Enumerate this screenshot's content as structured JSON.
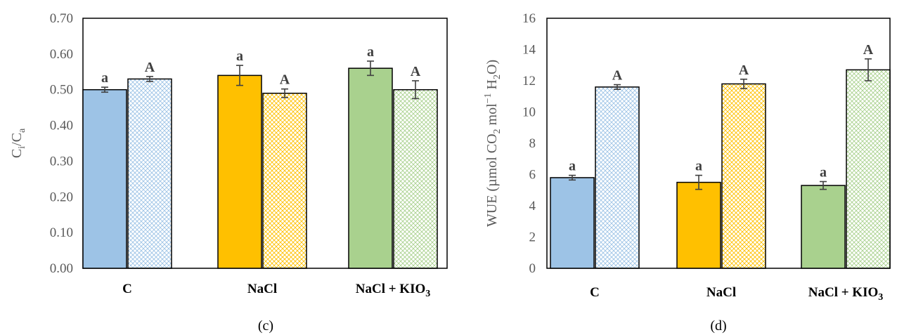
{
  "chart_data": [
    {
      "type": "bar",
      "panel_label": "(c)",
      "ylabel_main": "C",
      "ylabel_sub1": "i",
      "ylabel_mid": "/C",
      "ylabel_sub2": "a",
      "ylim": [
        0,
        0.7
      ],
      "yticks": [
        "0.00",
        "0.10",
        "0.20",
        "0.30",
        "0.40",
        "0.50",
        "0.60",
        "0.70"
      ],
      "grid": false,
      "categories": [
        {
          "main": "C",
          "sub": ""
        },
        {
          "main": "NaCl",
          "sub": ""
        },
        {
          "main": "NaCl + KIO",
          "sub": "3"
        }
      ],
      "series": [
        {
          "values": [
            0.5,
            0.54,
            0.56
          ],
          "errors": [
            0.007,
            0.028,
            0.02
          ],
          "letters": [
            "a",
            "a",
            "a"
          ],
          "pattern": "solid"
        },
        {
          "values": [
            0.53,
            0.49,
            0.5
          ],
          "errors": [
            0.007,
            0.012,
            0.025
          ],
          "letters": [
            "A",
            "A",
            "A"
          ],
          "pattern": "crosshatch"
        }
      ],
      "colors": [
        "#9dc3e6",
        "#ffc000",
        "#a9d18e"
      ]
    },
    {
      "type": "bar",
      "panel_label": "(d)",
      "ylabel_main": "WUE (µmol CO",
      "ylabel_sub1": "2",
      "ylabel_mid": " mol",
      "ylabel_sup": "−1",
      "ylabel_tail1": " H",
      "ylabel_sub2": "2",
      "ylabel_tail2": "O)",
      "ylim": [
        0,
        16
      ],
      "yticks": [
        "0",
        "2",
        "4",
        "6",
        "8",
        "10",
        "12",
        "14",
        "16"
      ],
      "grid": false,
      "categories": [
        {
          "main": "C",
          "sub": ""
        },
        {
          "main": "NaCl",
          "sub": ""
        },
        {
          "main": "NaCl + KIO",
          "sub": "3"
        }
      ],
      "series": [
        {
          "values": [
            5.8,
            5.5,
            5.3
          ],
          "errors": [
            0.15,
            0.45,
            0.25
          ],
          "letters": [
            "a",
            "a",
            "a"
          ],
          "pattern": "solid"
        },
        {
          "values": [
            11.6,
            11.8,
            12.7
          ],
          "errors": [
            0.15,
            0.3,
            0.7
          ],
          "letters": [
            "A",
            "A",
            "A"
          ],
          "pattern": "crosshatch"
        }
      ],
      "colors": [
        "#9dc3e6",
        "#ffc000",
        "#a9d18e"
      ]
    }
  ]
}
